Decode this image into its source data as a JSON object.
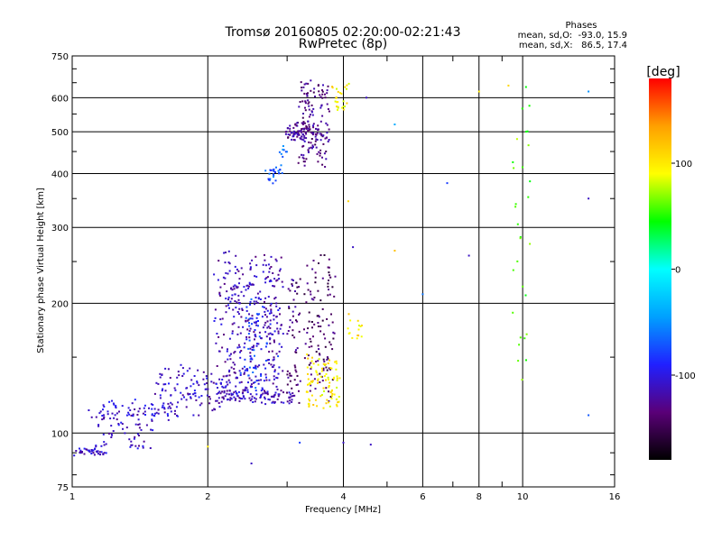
{
  "chart_data": {
    "type": "scatter",
    "title": "Tromsø 20160805 02:20:00-02:21:43",
    "subtitle": "RwPretec (8p)",
    "xlabel": "Frequency [MHz]",
    "ylabel": "Stationary phase Virtual Height [km]",
    "x_scale": "log",
    "y_scale": "log",
    "xlim": [
      1,
      16
    ],
    "ylim": [
      75,
      750
    ],
    "grid": true,
    "x_ticks": [
      1,
      2,
      4,
      6,
      8,
      10,
      16
    ],
    "x_minor_ticks": [
      3,
      5,
      7,
      9
    ],
    "y_ticks": [
      75,
      100,
      200,
      300,
      400,
      500,
      600,
      750
    ],
    "phases_box": {
      "title": "Phases",
      "line1": "mean, sd,O:  -93.0, 15.9",
      "line2": "mean, sd,X:   86.5, 17.4"
    },
    "colorbar": {
      "label": "[deg]",
      "min": -180,
      "max": 180,
      "ticks": [
        100,
        0,
        -100
      ],
      "colors": [
        "#000000",
        "#5a0078",
        "#2020ff",
        "#00a0ff",
        "#00ffff",
        "#00ff00",
        "#ffff00",
        "#ffa000",
        "#ff0000"
      ]
    },
    "clusters": [
      {
        "x": [
          1.0,
          1.2
        ],
        "y": [
          89,
          92
        ],
        "phase": -110,
        "count": 40,
        "jx": 0.01,
        "jy": 0.01
      },
      {
        "x": [
          1.1,
          1.5
        ],
        "y": [
          92,
          112
        ],
        "phase": -110,
        "count": 60,
        "jx": 0.015,
        "jy": 0.02
      },
      {
        "x": [
          1.15,
          1.7
        ],
        "y": [
          108,
          118
        ],
        "phase": -105,
        "count": 70,
        "jx": 0.01,
        "jy": 0.015
      },
      {
        "x": [
          1.55,
          2.2
        ],
        "y": [
          112,
          140
        ],
        "phase": -110,
        "count": 110,
        "jx": 0.03,
        "jy": 0.03
      },
      {
        "x": [
          2.1,
          3.1
        ],
        "y": [
          118,
          125
        ],
        "phase": -112,
        "count": 90,
        "jx": 0.01,
        "jy": 0.01
      },
      {
        "x": [
          2.1,
          2.9
        ],
        "y": [
          125,
          250
        ],
        "phase": -115,
        "count": 360,
        "jx": 0.03,
        "jy": 0.08
      },
      {
        "x": [
          2.4,
          2.8
        ],
        "y": [
          130,
          200
        ],
        "phase": -80,
        "count": 60,
        "jx": 0.03,
        "jy": 0.05
      },
      {
        "x": [
          3.0,
          3.2
        ],
        "y": [
          120,
          230
        ],
        "phase": -135,
        "count": 60,
        "jx": 0.01,
        "jy": 0.05
      },
      {
        "x": [
          3.3,
          3.8
        ],
        "y": [
          125,
          260
        ],
        "phase": -140,
        "count": 110,
        "jx": 0.015,
        "jy": 0.07
      },
      {
        "x": [
          3.3,
          3.9
        ],
        "y": [
          115,
          150
        ],
        "phase": 100,
        "count": 90,
        "jx": 0.015,
        "jy": 0.02
      },
      {
        "x": [
          4.1,
          4.4
        ],
        "y": [
          160,
          190
        ],
        "phase": 100,
        "count": 15,
        "jx": 0.01,
        "jy": 0.02
      },
      {
        "x": [
          3.0,
          3.5
        ],
        "y": [
          480,
          520
        ],
        "phase": -125,
        "count": 80,
        "jx": 0.02,
        "jy": 0.02
      },
      {
        "x": [
          3.2,
          3.7
        ],
        "y": [
          420,
          640
        ],
        "phase": -130,
        "count": 140,
        "jx": 0.015,
        "jy": 0.04
      },
      {
        "x": [
          2.7,
          2.9
        ],
        "y": [
          380,
          420
        ],
        "phase": -70,
        "count": 25,
        "jx": 0.01,
        "jy": 0.01
      },
      {
        "x": [
          2.9,
          3.05
        ],
        "y": [
          440,
          470
        ],
        "phase": -60,
        "count": 8,
        "jx": 0.01,
        "jy": 0.01
      },
      {
        "x": [
          3.8,
          4.1
        ],
        "y": [
          560,
          640
        ],
        "phase": 100,
        "count": 25,
        "jx": 0.01,
        "jy": 0.02
      },
      {
        "x": [
          9.5,
          10.5
        ],
        "y": [
          150,
          620
        ],
        "phase": 60,
        "count": 30,
        "jx": 0.02,
        "jy": 0.15
      }
    ],
    "points": [
      {
        "x": 4.5,
        "y": 600,
        "phase": -110
      },
      {
        "x": 5.2,
        "y": 520,
        "phase": -40
      },
      {
        "x": 6.8,
        "y": 380,
        "phase": -80
      },
      {
        "x": 5.2,
        "y": 265,
        "phase": 120
      },
      {
        "x": 7.6,
        "y": 258,
        "phase": -110
      },
      {
        "x": 6.0,
        "y": 210,
        "phase": -60
      },
      {
        "x": 14.0,
        "y": 620,
        "phase": -50
      },
      {
        "x": 14.0,
        "y": 350,
        "phase": -110
      },
      {
        "x": 14.0,
        "y": 110,
        "phase": -70
      },
      {
        "x": 8.0,
        "y": 620,
        "phase": 100
      },
      {
        "x": 9.3,
        "y": 640,
        "phase": 110
      },
      {
        "x": 4.0,
        "y": 95,
        "phase": -110
      },
      {
        "x": 3.2,
        "y": 95,
        "phase": -80
      },
      {
        "x": 4.6,
        "y": 94,
        "phase": -110
      },
      {
        "x": 2.5,
        "y": 85,
        "phase": -110
      },
      {
        "x": 2.0,
        "y": 93,
        "phase": 100
      },
      {
        "x": 4.2,
        "y": 270,
        "phase": -110
      },
      {
        "x": 4.1,
        "y": 345,
        "phase": 110
      }
    ]
  }
}
